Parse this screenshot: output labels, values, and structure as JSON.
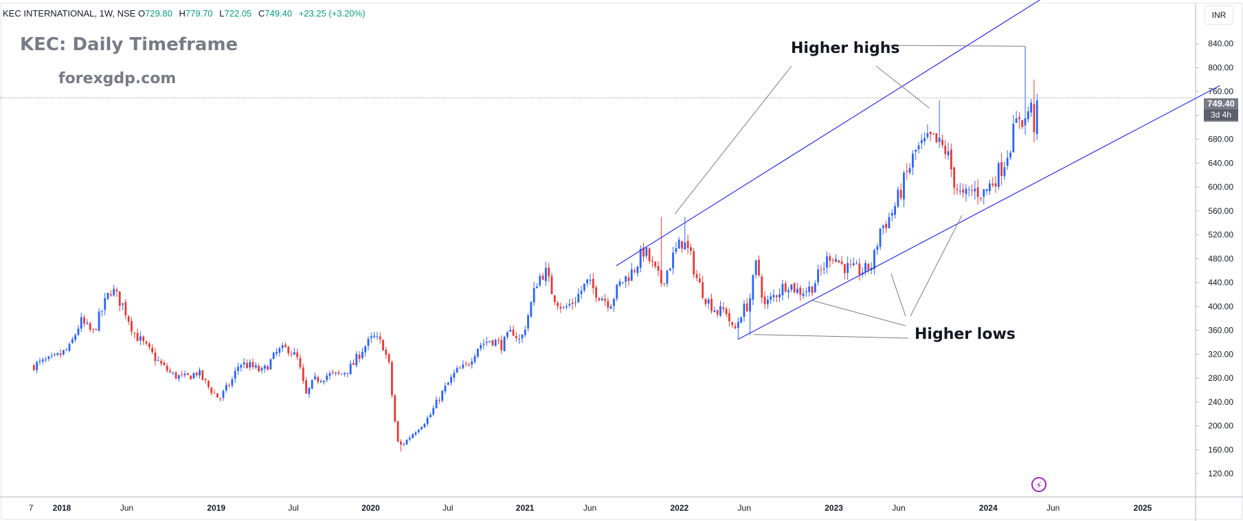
{
  "header": {
    "symbol": "KEC INTERNATIONAL, 1W, NSE",
    "o_label": "O",
    "o_value": "729.80",
    "h_label": "H",
    "h_value": "779.70",
    "l_label": "L",
    "l_value": "722.05",
    "c_label": "C",
    "c_value": "749.40",
    "change": "+23.25 (+3.20%)"
  },
  "overlay": {
    "title": "KEC: Daily Timeframe",
    "site": "forexgdp.com",
    "higher_highs": "Higher highs",
    "higher_lows": "Higher lows"
  },
  "price_scale": {
    "currency": "INR",
    "current_price": "749.40",
    "countdown": "3d 4h"
  },
  "icons": {
    "replay": "lightning-icon"
  },
  "colors": {
    "up": "#089981",
    "down": "#f23645",
    "candle_up": "#2962ff",
    "candle_down": "#e53935",
    "channel": "#2a2ee0",
    "annotation_line": "#787b86",
    "grid": "#f0f3fa"
  },
  "chart_data": {
    "type": "candlestick",
    "interval": "1W",
    "ylim": [
      100,
      880
    ],
    "y_ticks": [
      120,
      160,
      200,
      240,
      280,
      320,
      360,
      400,
      440,
      480,
      520,
      560,
      600,
      640,
      680,
      720,
      760,
      800,
      840,
      880
    ],
    "x_labels": [
      {
        "label": "7",
        "t": 2017.8
      },
      {
        "label": "2018",
        "t": 2018.0
      },
      {
        "label": "Jun",
        "t": 2018.42
      },
      {
        "label": "2019",
        "t": 2019.0
      },
      {
        "label": "Jul",
        "t": 2019.5
      },
      {
        "label": "2020",
        "t": 2020.0
      },
      {
        "label": "Jul",
        "t": 2020.5
      },
      {
        "label": "2021",
        "t": 2021.0
      },
      {
        "label": "Jun",
        "t": 2021.42
      },
      {
        "label": "2022",
        "t": 2022.0
      },
      {
        "label": "Jun",
        "t": 2022.42
      },
      {
        "label": "2023",
        "t": 2023.0
      },
      {
        "label": "Jun",
        "t": 2023.42
      },
      {
        "label": "2024",
        "t": 2024.0
      },
      {
        "label": "Jun",
        "t": 2024.42
      },
      {
        "label": "2025",
        "t": 2025.0
      }
    ],
    "xlim": [
      2017.8,
      2025.5
    ],
    "price_anchors": [
      [
        2017.8,
        300
      ],
      [
        2017.95,
        312
      ],
      [
        2018.05,
        330
      ],
      [
        2018.12,
        375
      ],
      [
        2018.2,
        355
      ],
      [
        2018.27,
        400
      ],
      [
        2018.32,
        430
      ],
      [
        2018.4,
        400
      ],
      [
        2018.47,
        355
      ],
      [
        2018.55,
        330
      ],
      [
        2018.65,
        300
      ],
      [
        2018.72,
        285
      ],
      [
        2018.8,
        280
      ],
      [
        2018.88,
        290
      ],
      [
        2018.95,
        265
      ],
      [
        2019.02,
        245
      ],
      [
        2019.1,
        275
      ],
      [
        2019.15,
        305
      ],
      [
        2019.22,
        300
      ],
      [
        2019.3,
        290
      ],
      [
        2019.4,
        325
      ],
      [
        2019.47,
        330
      ],
      [
        2019.53,
        310
      ],
      [
        2019.58,
        250
      ],
      [
        2019.63,
        275
      ],
      [
        2019.72,
        285
      ],
      [
        2019.8,
        285
      ],
      [
        2019.88,
        300
      ],
      [
        2019.95,
        330
      ],
      [
        2020.02,
        348
      ],
      [
        2020.08,
        335
      ],
      [
        2020.12,
        300
      ],
      [
        2020.15,
        220
      ],
      [
        2020.18,
        165
      ],
      [
        2020.22,
        172
      ],
      [
        2020.3,
        195
      ],
      [
        2020.38,
        215
      ],
      [
        2020.45,
        250
      ],
      [
        2020.55,
        290
      ],
      [
        2020.62,
        300
      ],
      [
        2020.7,
        335
      ],
      [
        2020.78,
        345
      ],
      [
        2020.85,
        335
      ],
      [
        2020.92,
        360
      ],
      [
        2020.97,
        340
      ],
      [
        2021.03,
        395
      ],
      [
        2021.08,
        445
      ],
      [
        2021.13,
        460
      ],
      [
        2021.18,
        420
      ],
      [
        2021.25,
        395
      ],
      [
        2021.32,
        410
      ],
      [
        2021.4,
        440
      ],
      [
        2021.48,
        420
      ],
      [
        2021.55,
        405
      ],
      [
        2021.62,
        440
      ],
      [
        2021.7,
        460
      ],
      [
        2021.77,
        495
      ],
      [
        2021.83,
        465
      ],
      [
        2021.88,
        440
      ],
      [
        2021.92,
        460
      ],
      [
        2021.97,
        490
      ],
      [
        2022.02,
        510
      ],
      [
        2022.07,
        485
      ],
      [
        2022.12,
        440
      ],
      [
        2022.18,
        410
      ],
      [
        2022.25,
        390
      ],
      [
        2022.3,
        395
      ],
      [
        2022.35,
        355
      ],
      [
        2022.4,
        390
      ],
      [
        2022.45,
        405
      ],
      [
        2022.5,
        475
      ],
      [
        2022.55,
        400
      ],
      [
        2022.62,
        420
      ],
      [
        2022.7,
        440
      ],
      [
        2022.77,
        425
      ],
      [
        2022.85,
        430
      ],
      [
        2022.92,
        460
      ],
      [
        2022.98,
        490
      ],
      [
        2023.05,
        470
      ],
      [
        2023.12,
        460
      ],
      [
        2023.2,
        460
      ],
      [
        2023.25,
        470
      ],
      [
        2023.3,
        530
      ],
      [
        2023.35,
        545
      ],
      [
        2023.4,
        570
      ],
      [
        2023.47,
        620
      ],
      [
        2023.53,
        660
      ],
      [
        2023.58,
        670
      ],
      [
        2023.63,
        680
      ],
      [
        2023.68,
        670
      ],
      [
        2023.73,
        660
      ],
      [
        2023.78,
        610
      ],
      [
        2023.83,
        580
      ],
      [
        2023.9,
        595
      ],
      [
        2023.97,
        590
      ],
      [
        2024.03,
        610
      ],
      [
        2024.1,
        640
      ],
      [
        2024.15,
        680
      ],
      [
        2024.2,
        720
      ],
      [
        2024.24,
        710
      ],
      [
        2024.27,
        740
      ],
      [
        2024.3,
        700
      ],
      [
        2024.33,
        749.4
      ]
    ],
    "special_wicks": [
      {
        "t": 2021.89,
        "high": 550
      },
      {
        "t": 2022.04,
        "high": 550
      },
      {
        "t": 2023.69,
        "high": 745
      },
      {
        "t": 2024.24,
        "high": 836
      },
      {
        "t": 2024.3,
        "high": 780
      },
      {
        "t": 2022.38,
        "low": 345
      },
      {
        "t": 2022.46,
        "low": 352
      },
      {
        "t": 2020.19,
        "low": 157
      }
    ],
    "channel_upper": [
      [
        2021.59,
        468
      ],
      [
        2024.62,
        960
      ]
    ],
    "channel_lower": [
      [
        2022.38,
        345
      ],
      [
        2025.5,
        770
      ]
    ],
    "current_price": 749.4,
    "annotations": [
      {
        "text": "Higher highs",
        "points": [
          [
            2021.97,
            555
          ],
          [
            2023.62,
            732
          ],
          [
            2024.24,
            836
          ]
        ]
      },
      {
        "text": "Higher lows",
        "points": [
          [
            2022.48,
            353
          ],
          [
            2022.86,
            410
          ],
          [
            2023.37,
            455
          ],
          [
            2023.83,
            553
          ]
        ]
      }
    ]
  }
}
